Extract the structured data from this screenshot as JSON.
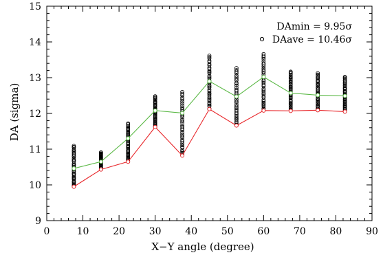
{
  "chart_data": {
    "type": "scatter",
    "title": "",
    "xlabel": "X−Y angle (degree)",
    "ylabel": "DA (sigma)",
    "xlim": [
      0,
      90
    ],
    "ylim": [
      9,
      15
    ],
    "xticks": [
      0,
      10,
      20,
      30,
      40,
      50,
      60,
      70,
      80,
      90
    ],
    "yticks": [
      9,
      10,
      11,
      12,
      13,
      14,
      15
    ],
    "grid": false,
    "legend_position": "top-right",
    "x": [
      7.5,
      15,
      22.5,
      30,
      37.5,
      45,
      52.5,
      60,
      67.5,
      75,
      82.5
    ],
    "series": [
      {
        "legend_label": "DAmin =  9.95σ",
        "marker": "none",
        "color": "#e8262a",
        "values": [
          9.95,
          10.43,
          10.65,
          11.62,
          10.82,
          12.12,
          11.66,
          12.08,
          12.07,
          12.09,
          12.05
        ]
      },
      {
        "legend_label": "DAave = 10.46σ",
        "marker": "circle",
        "color": "#5cb947",
        "values": [
          10.46,
          10.65,
          11.3,
          12.08,
          12.01,
          12.9,
          12.47,
          13.02,
          12.57,
          12.51,
          12.49
        ]
      }
    ],
    "scatter_ranges": [
      {
        "x": 7.5,
        "min": 9.95,
        "max": 11.1
      },
      {
        "x": 15,
        "min": 10.43,
        "max": 10.92
      },
      {
        "x": 22.5,
        "min": 10.65,
        "max": 11.72
      },
      {
        "x": 30,
        "min": 11.62,
        "max": 12.48
      },
      {
        "x": 37.5,
        "min": 10.82,
        "max": 12.6
      },
      {
        "x": 45,
        "min": 12.12,
        "max": 13.62
      },
      {
        "x": 52.5,
        "min": 11.66,
        "max": 13.27
      },
      {
        "x": 60,
        "min": 12.08,
        "max": 13.66
      },
      {
        "x": 67.5,
        "min": 12.07,
        "max": 13.18
      },
      {
        "x": 75,
        "min": 12.09,
        "max": 13.13
      },
      {
        "x": 82.5,
        "min": 12.05,
        "max": 13.03
      }
    ]
  }
}
